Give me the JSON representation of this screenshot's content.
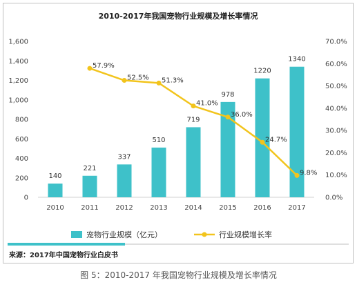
{
  "chart_data": {
    "type": "bar",
    "title": "2010-2017年我国宠物行业规模及增长率情况",
    "categories": [
      "2010",
      "2011",
      "2012",
      "2013",
      "2014",
      "2015",
      "2016",
      "2017"
    ],
    "series": [
      {
        "name": "宠物行业规模（亿元）",
        "type": "bar",
        "axis": "left",
        "color": "#3ec1c9",
        "values": [
          140,
          221,
          337,
          510,
          719,
          978,
          1220,
          1340
        ],
        "labels": [
          "140",
          "221",
          "337",
          "510",
          "719",
          "978",
          "1220",
          "1340"
        ]
      },
      {
        "name": "行业规模增长率",
        "type": "line",
        "axis": "right",
        "color": "#f2c41c",
        "values": [
          null,
          57.9,
          52.5,
          51.3,
          41.0,
          36.0,
          24.7,
          9.8
        ],
        "labels": [
          "",
          "57.9%",
          "52.5%",
          "51.3%",
          "41.0%",
          "36.0%",
          "24.7%",
          "9.8%"
        ]
      }
    ],
    "y_left": {
      "min": 0,
      "max": 1600,
      "ticks": [
        0,
        200,
        400,
        600,
        800,
        1000,
        1200,
        1400,
        1600
      ],
      "tick_labels": [
        "0",
        "200",
        "400",
        "600",
        "800",
        "1,000",
        "1,200",
        "1,400",
        "1,600"
      ]
    },
    "y_right": {
      "min": 0,
      "max": 70,
      "ticks": [
        0,
        10,
        20,
        30,
        40,
        50,
        60,
        70
      ],
      "tick_labels": [
        "0.0%",
        "10.0%",
        "20.0%",
        "30.0%",
        "40.0%",
        "50.0%",
        "60.0%",
        "70.0%"
      ]
    },
    "grid": false,
    "legend_position": "bottom",
    "source": "来源：2017年中国宠物行业白皮书"
  },
  "caption": "图 5：2010-2017 年我国宠物行业规模及增长率情况"
}
